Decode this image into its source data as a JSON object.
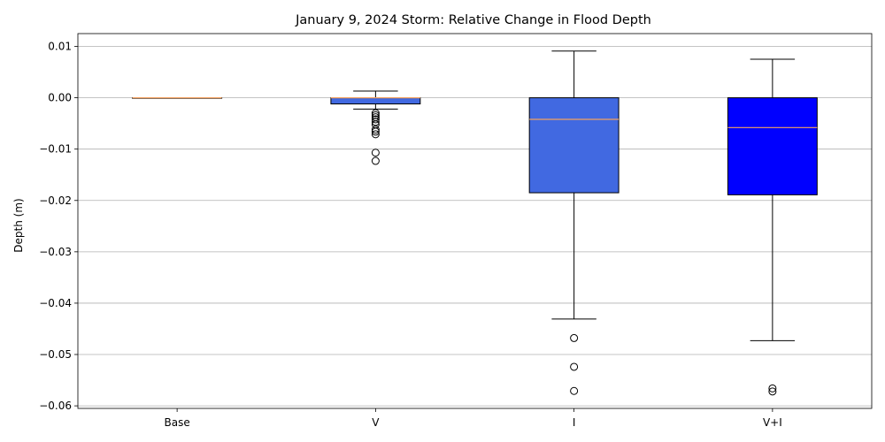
{
  "chart_data": {
    "type": "box",
    "title": "January 9, 2024 Storm: Relative Change in Flood Depth",
    "xlabel": "",
    "ylabel": "Depth (m)",
    "ylim": [
      -0.0605,
      0.0125
    ],
    "yticks": [
      0.01,
      0.0,
      -0.01,
      -0.02,
      -0.03,
      -0.04,
      -0.05,
      -0.06
    ],
    "ytick_labels": [
      "0.01",
      "0.00",
      "−0.01",
      "−0.02",
      "−0.03",
      "−0.04",
      "−0.05",
      "−0.06"
    ],
    "grid": "horizontal",
    "categories": [
      "Base",
      "V",
      "I",
      "V+I"
    ],
    "series": [
      {
        "category": "Base",
        "whisker_low": 0.0,
        "q1": 0.0,
        "median": 0.0,
        "q3": 0.0,
        "whisker_high": 0.0,
        "outliers": [],
        "color": "#4169e1"
      },
      {
        "category": "V",
        "whisker_low": -0.0022,
        "q1": -0.0012,
        "median": 0.0,
        "q3": 0.0,
        "whisker_high": 0.0013,
        "outliers": [
          -0.003,
          -0.0034,
          -0.0038,
          -0.0042,
          -0.0047,
          -0.0052,
          -0.0062,
          -0.0066,
          -0.0071,
          -0.0107,
          -0.0123
        ],
        "color": "#4169e1"
      },
      {
        "category": "I",
        "whisker_low": -0.0431,
        "q1": -0.0185,
        "median": -0.0042,
        "q3": 0.0,
        "whisker_high": 0.0091,
        "outliers": [
          -0.0468,
          -0.0524,
          -0.0571
        ],
        "color": "#4169e1"
      },
      {
        "category": "V+I",
        "whisker_low": -0.0473,
        "q1": -0.0189,
        "median": -0.0058,
        "q3": 0.0,
        "whisker_high": 0.0075,
        "outliers": [
          -0.0566,
          -0.0572
        ],
        "color": "#0000ff"
      }
    ],
    "median_color": "#f4a261",
    "outlier_style": "open-circle"
  }
}
